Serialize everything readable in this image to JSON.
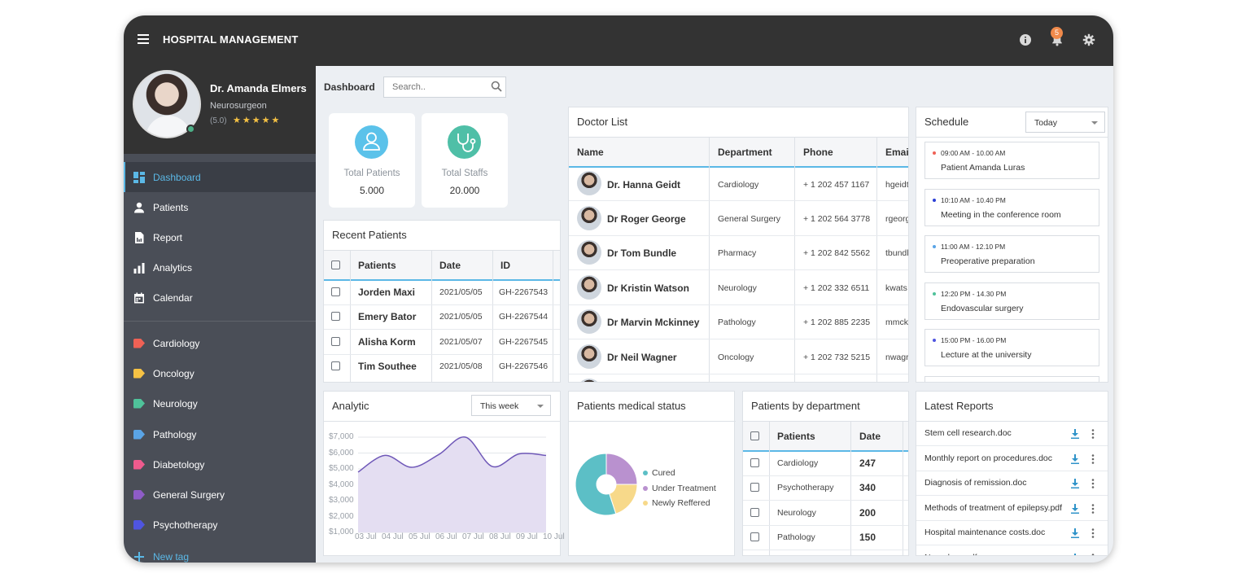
{
  "app": {
    "title": "HOSPITAL MANAGEMENT",
    "notification_count": "5"
  },
  "profile": {
    "name": "Dr. Amanda Elmers",
    "role": "Neurosurgeon",
    "rating": "(5.0)",
    "stars": "★★★★★"
  },
  "nav": [
    {
      "label": "Dashboard",
      "icon": "dashboard-icon"
    },
    {
      "label": "Patients",
      "icon": "person-icon"
    },
    {
      "label": "Report",
      "icon": "report-icon"
    },
    {
      "label": "Analytics",
      "icon": "analytics-icon"
    },
    {
      "label": "Calendar",
      "icon": "calendar-icon"
    }
  ],
  "tags": [
    {
      "label": "Cardiology",
      "color": "#ef6155"
    },
    {
      "label": "Oncology",
      "color": "#f6c244"
    },
    {
      "label": "Neurology",
      "color": "#4fc29a"
    },
    {
      "label": "Pathology",
      "color": "#5aa4e6"
    },
    {
      "label": "Diabetology",
      "color": "#ee5b8e"
    },
    {
      "label": "General Surgery",
      "color": "#8e5cc7"
    },
    {
      "label": "Psychotherapy",
      "color": "#4f55e0"
    }
  ],
  "new_tag": "New tag",
  "breadcrumb": "Dashboard",
  "search": {
    "placeholder": "Search.."
  },
  "stats": [
    {
      "label": "Total Patients",
      "value": "5.000",
      "color": "#5bc2ea",
      "icon": "person-icon"
    },
    {
      "label": "Total Staffs",
      "value": "20.000",
      "color": "#4fbfa7",
      "icon": "stethoscope-icon"
    }
  ],
  "recent_patients": {
    "title": "Recent Patients",
    "headers": [
      "Patients",
      "Date",
      "ID"
    ],
    "rows": [
      {
        "name": "Jorden Maxi",
        "date": "2021/05/05",
        "id": "GH-2267543"
      },
      {
        "name": "Emery Bator",
        "date": "2021/05/05",
        "id": "GH-2267544"
      },
      {
        "name": "Alisha Korm",
        "date": "2021/05/07",
        "id": "GH-2267545"
      },
      {
        "name": "Tim Southee",
        "date": "2021/05/08",
        "id": "GH-2267546"
      }
    ]
  },
  "doctor_list": {
    "title": "Doctor List",
    "headers": [
      "Name",
      "Department",
      "Phone",
      "Email"
    ],
    "rows": [
      {
        "name": "Dr. Hanna Geidt",
        "department": "Cardiology",
        "phone": "+ 1 202 457 1167",
        "email": "hgeidt"
      },
      {
        "name": "Dr Roger George",
        "department": "General Surgery",
        "phone": "+ 1 202 564 3778",
        "email": "rgeorg"
      },
      {
        "name": "Dr Tom Bundle",
        "department": "Pharmacy",
        "phone": "+ 1 202 842 5562",
        "email": "tbundl"
      },
      {
        "name": "Dr Kristin Watson",
        "department": "Neurology",
        "phone": "+ 1 202 332 6511",
        "email": "kwats"
      },
      {
        "name": "Dr Marvin Mckinney",
        "department": "Pathology",
        "phone": "+ 1 202 885 2235",
        "email": "mmck"
      },
      {
        "name": "Dr Neil Wagner",
        "department": "Oncology",
        "phone": "+ 1 202 732 5215",
        "email": "nwagr"
      }
    ]
  },
  "schedule": {
    "title": "Schedule",
    "filter": "Today",
    "items": [
      {
        "time": "09:00 AM - 10.00 AM",
        "title": "Patient Amanda Luras",
        "color": "#ef6155"
      },
      {
        "time": "10:10 AM - 10.40 PM",
        "title": "Meeting in the conference room",
        "color": "#2b3fd6"
      },
      {
        "time": "11:00 AM - 12.10 PM",
        "title": "Preoperative preparation",
        "color": "#5aa4e6"
      },
      {
        "time": "12:20 PM - 14.30 PM",
        "title": "Endovascular surgery",
        "color": "#4fc29a"
      },
      {
        "time": "15:00 PM - 16.00 PM",
        "title": "Lecture at the university",
        "color": "#4f55e0"
      }
    ]
  },
  "analytic": {
    "title": "Analytic",
    "filter": "This week"
  },
  "medical_status": {
    "title": "Patients medical status",
    "legend": [
      "Cured",
      "Under Treatment",
      "Newly Reffered"
    ]
  },
  "by_department": {
    "title": "Patients by department",
    "headers": [
      "Patients",
      "Date"
    ],
    "rows": [
      {
        "dept": "Cardiology",
        "value": "247"
      },
      {
        "dept": "Psychotherapy",
        "value": "340"
      },
      {
        "dept": "Neurology",
        "value": "200"
      },
      {
        "dept": "Pathology",
        "value": "150"
      }
    ]
  },
  "latest_reports": {
    "title": "Latest Reports",
    "items": [
      "Stem cell research.doc",
      "Monthly report on procedures.doc",
      "Diagnosis of remission.doc",
      "Methods of treatment of epilepsy.pdf",
      "Hospital maintenance costs.doc",
      "Neurology.pdf"
    ]
  },
  "chart_data": [
    {
      "type": "area",
      "categories": [
        "03 Jul",
        "04 Jul",
        "05 Jul",
        "06 Jul",
        "07 Jul",
        "08 Jul",
        "09 Jul",
        "10 Jul"
      ],
      "yticks": [
        "$1,000",
        "$2,000",
        "$3,000",
        "$4,000",
        "$5,000",
        "$6,000",
        "$7,000"
      ],
      "values": [
        4800,
        5850,
        5100,
        5900,
        7000,
        5150,
        5950,
        5850
      ],
      "ylim": [
        1000,
        7000
      ],
      "color": "#6f58b8",
      "fill": "#e4def2",
      "grid": true
    },
    {
      "type": "pie",
      "labels": [
        "Cured",
        "Under Treatment",
        "Newly Reffered"
      ],
      "values": [
        55,
        25,
        20
      ],
      "colors": [
        "#5cbfc6",
        "#b991cf",
        "#f7d98a"
      ],
      "legend": "right"
    }
  ]
}
